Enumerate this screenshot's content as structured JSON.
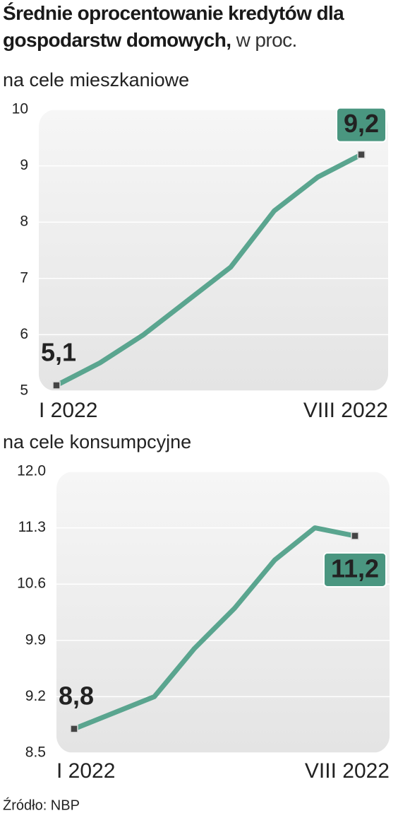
{
  "title": "Średnie oprocentowanie kredytów dla gospodarstw domowych,",
  "title_note": "w proc.",
  "source": "Źródło: NBP",
  "chart_data": [
    {
      "type": "line",
      "subtitle": "na cele mieszkaniowe",
      "categories": [
        "I 2022",
        null,
        null,
        null,
        null,
        null,
        null,
        "VIII 2022"
      ],
      "series": [
        {
          "color": "#5aa58f",
          "values": [
            5.1,
            5.5,
            6.0,
            6.6,
            7.2,
            8.2,
            8.8,
            9.2
          ],
          "value_labels": [
            "5,1",
            null,
            null,
            null,
            null,
            null,
            null,
            "9,2"
          ]
        }
      ],
      "ylim": [
        5,
        10
      ],
      "yticks": [
        5,
        6,
        7,
        8,
        9,
        10
      ],
      "grid": true
    },
    {
      "type": "line",
      "subtitle": "na cele konsumpcyjne",
      "categories": [
        "I 2022",
        null,
        null,
        null,
        null,
        null,
        null,
        "VIII 2022"
      ],
      "series": [
        {
          "color": "#5aa58f",
          "values": [
            8.8,
            9.0,
            9.2,
            9.8,
            10.3,
            10.9,
            11.3,
            11.2
          ],
          "value_labels": [
            "8,8",
            null,
            null,
            null,
            null,
            null,
            null,
            "11,2"
          ]
        }
      ],
      "ylim": [
        8.5,
        12
      ],
      "yticks": [
        8.5,
        9.2,
        9.9,
        10.6,
        11.3,
        {
          "value": 12,
          "label": "12.0"
        }
      ],
      "grid": true
    }
  ]
}
